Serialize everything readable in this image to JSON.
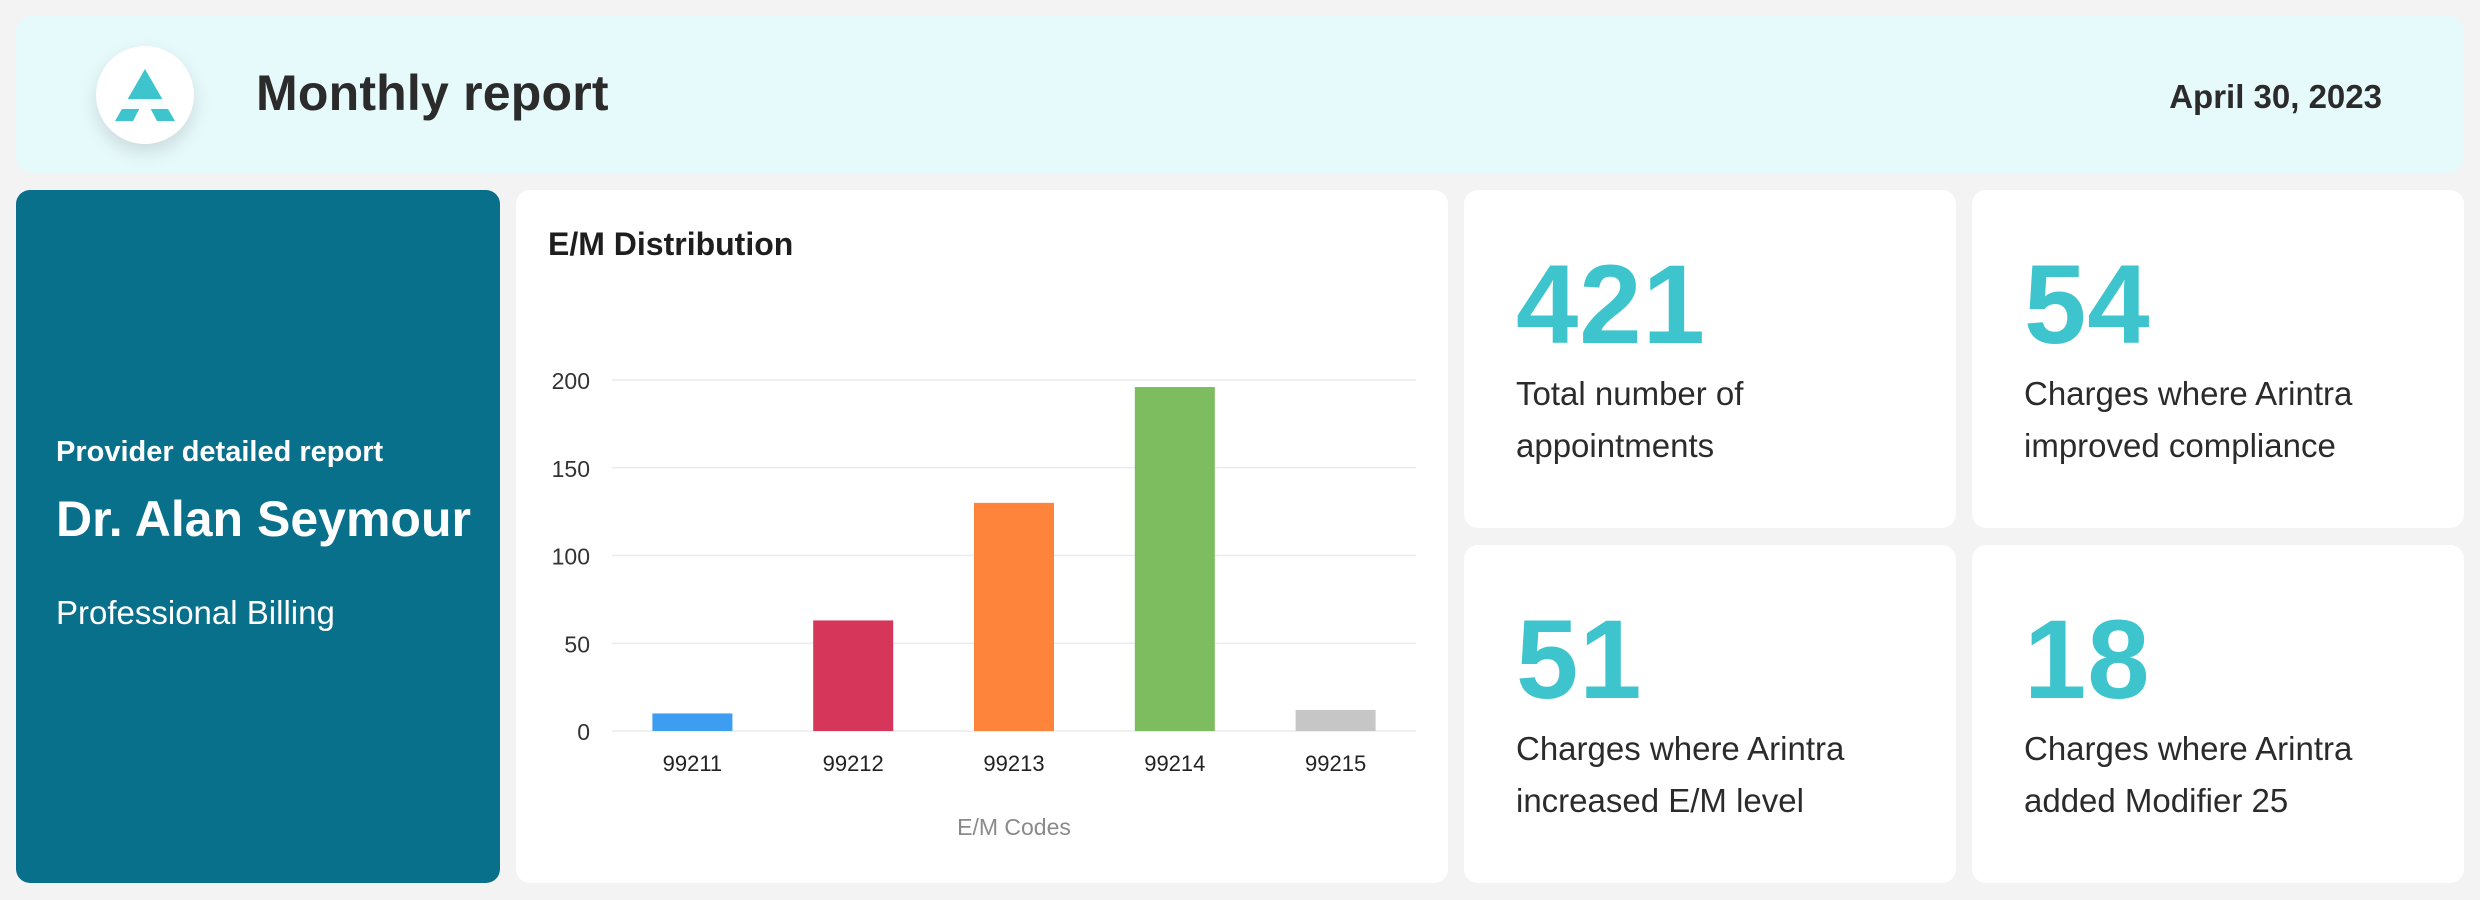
{
  "header": {
    "title": "Monthly report",
    "date": "April 30, 2023",
    "logo_icon": "arintra-a-logo-icon"
  },
  "provider": {
    "kicker": "Provider detailed report",
    "name": "Dr. Alan Seymour",
    "department": "Professional Billing"
  },
  "stats": [
    {
      "value": "421",
      "label": "Total number of appointments"
    },
    {
      "value": "54",
      "label": "Charges where Arintra improved compliance"
    },
    {
      "value": "51",
      "label": "Charges where Arintra increased E/M level"
    },
    {
      "value": "18",
      "label": "Charges where Arintra added Modifier 25"
    }
  ],
  "colors": {
    "accent": "#3ec4cc",
    "provider_panel": "#08708b",
    "header_bg": "#e6f9fb"
  },
  "chart_data": {
    "type": "bar",
    "title": "E/M Distribution",
    "xlabel": "E/M Codes",
    "ylabel": "",
    "categories": [
      "99211",
      "99212",
      "99213",
      "99214",
      "99215"
    ],
    "values": [
      10,
      63,
      130,
      196,
      12
    ],
    "colors": [
      "#3d9df0",
      "#d6365a",
      "#ff843b",
      "#7dbd5f",
      "#c6c6c6"
    ],
    "ylim": [
      0,
      200
    ],
    "yticks": [
      0,
      50,
      100,
      150,
      200
    ],
    "grid": true,
    "legend": "none"
  }
}
